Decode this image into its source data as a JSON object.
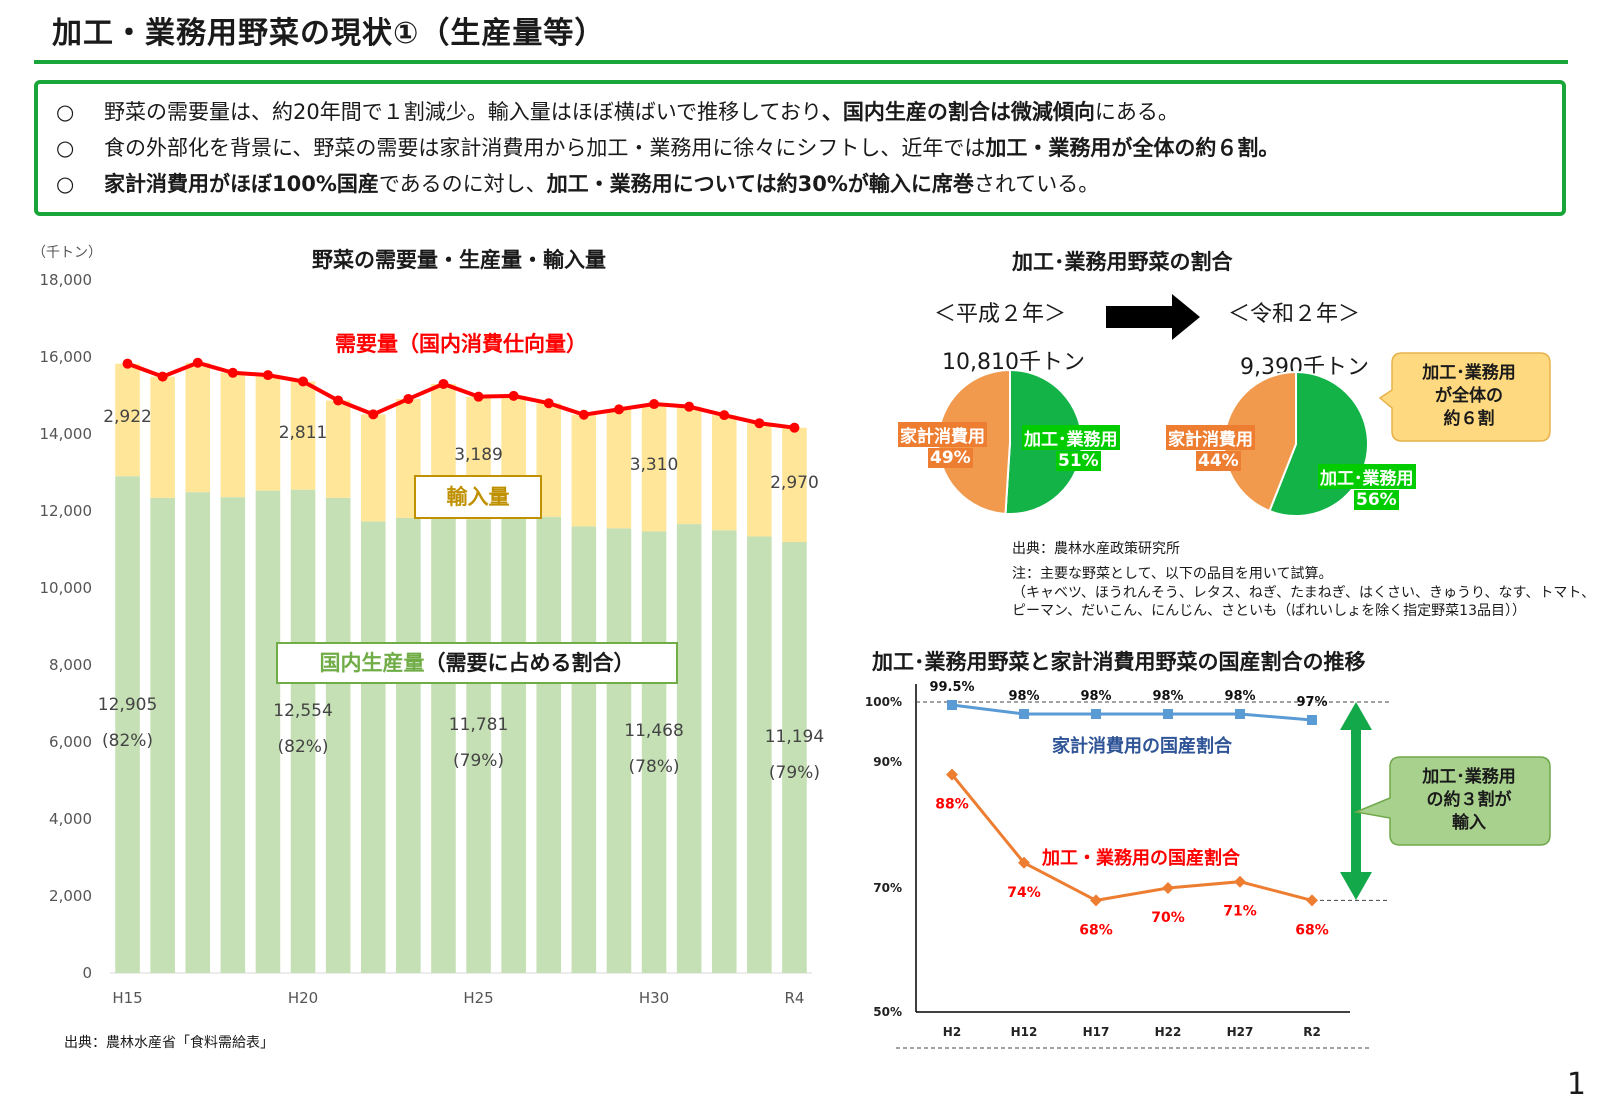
{
  "page": {
    "title": "加工・業務用野菜の現状①（生産量等）",
    "page_number": "1",
    "colors": {
      "accent_green": "#1aa53a",
      "demand_red": "#ff0000",
      "import_yellow": "#ffe699",
      "domestic_green": "#c5e0b4"
    }
  },
  "summary": {
    "bullet": "○",
    "lines": [
      {
        "a": "野菜の需要量は、約20年間で１割減少。輸入量はほぼ横ばいで推移しており",
        "b": "、国内生産の割合は微減傾向",
        "c": "にある。",
        "d": "",
        "e": ""
      },
      {
        "a": "食の外部化を背景に、野菜の需要は家計消費用から加工・業務用に徐々にシフトし、近年では",
        "b": "加工・業務用が全体の約６割",
        "c": "。",
        "d": "",
        "e": ""
      },
      {
        "a": "",
        "b": "家計消費用がほぼ100%国産",
        "c": "であるのに対し、",
        "d": "加工・業務用については約30%が輸入に席巻",
        "e": "されている。"
      }
    ]
  },
  "left_chart": {
    "title": "野菜の需要量・生産量・輸入量",
    "unit": "（千トン）",
    "source": "出典：農林水産省「食料需給表」",
    "demand_label": "需要量（国内消費仕向量）",
    "import_label": "輸入量",
    "domestic_label_green": "国内生産量",
    "domestic_label_black": "（需要に占める割合）",
    "y_ticks": [
      "18,000",
      "16,000",
      "14,000",
      "12,000",
      "10,000",
      "8,000",
      "6,000",
      "4,000",
      "2,000",
      "0"
    ],
    "x_labels": [
      "H15",
      "H20",
      "H25",
      "H30",
      "R4"
    ],
    "domestic_annotations": [
      {
        "value": "12,905",
        "pct": "(82%)"
      },
      {
        "value": "12,554",
        "pct": "(82%)"
      },
      {
        "value": "11,781",
        "pct": "(79%)"
      },
      {
        "value": "11,468",
        "pct": "(78%)"
      },
      {
        "value": "11,194",
        "pct": "(79%)"
      }
    ],
    "import_annotations": [
      "2,922",
      "2,811",
      "3,189",
      "3,310",
      "2,970"
    ]
  },
  "pie_section": {
    "title": "加工･業務用野菜の割合",
    "left_era": "＜平成２年＞",
    "right_era": "＜令和２年＞",
    "left_total": "10,810千トン",
    "right_total": "9,390千トン",
    "household_label": "家計消費用",
    "processing_label": "加工･業務用",
    "left_household_pct": "49%",
    "left_processing_pct": "51%",
    "right_household_pct": "44%",
    "right_processing_pct": "56%",
    "callout": [
      "加工･業務用",
      "が全体の",
      "約６割"
    ],
    "source": "出典：農林水産政策研究所",
    "note_1": "注：主要な野菜として、以下の品目を用いて試算。",
    "note_2": "（キャベツ、ほうれんそう、レタス、ねぎ、たまねぎ、はくさい、きゅうり、なす、トマト、",
    "note_3": "ピーマン、だいこん、にんじん、さといも（ばれいしょを除く指定野菜13品目））"
  },
  "line_section": {
    "title": "加工･業務用野菜と家計消費用野菜の国産割合の推移",
    "y_ticks": [
      "100%",
      "90%",
      "70%",
      "50%"
    ],
    "household_series_label": "家計消費用の国産割合",
    "processing_series_label": "加工・業務用の国産割合",
    "callout": [
      "加工･業務用",
      "の約３割が",
      "輸入"
    ]
  },
  "chart_data": [
    {
      "type": "bar",
      "title": "野菜の需要量・生産量・輸入量",
      "ylabel": "（千トン）",
      "ylim": [
        0,
        18000
      ],
      "categories": [
        "H15",
        "H16",
        "H17",
        "H18",
        "H19",
        "H20",
        "H21",
        "H22",
        "H23",
        "H24",
        "H25",
        "H26",
        "H27",
        "H28",
        "H29",
        "H30",
        "R1",
        "R2",
        "R3",
        "R4"
      ],
      "stacked": true,
      "series": [
        {
          "name": "国内生産量",
          "values": [
            12905,
            12340,
            12490,
            12360,
            12530,
            12554,
            12340,
            11730,
            11820,
            12010,
            11781,
            11890,
            11850,
            11600,
            11550,
            11468,
            11660,
            11500,
            11340,
            11194
          ]
        },
        {
          "name": "輸入量",
          "values": [
            2922,
            3150,
            3360,
            3230,
            3000,
            2811,
            2530,
            2780,
            3090,
            3290,
            3189,
            3100,
            2950,
            2900,
            3090,
            3310,
            3050,
            2990,
            2940,
            2970
          ]
        }
      ],
      "line": {
        "name": "需要量（国内消費仕向量）",
        "values": [
          15827,
          15490,
          15850,
          15590,
          15530,
          15365,
          14870,
          14510,
          14910,
          15300,
          14970,
          14990,
          14800,
          14500,
          14640,
          14778,
          14710,
          14490,
          14280,
          14164
        ]
      },
      "grid": false
    },
    {
      "type": "pie",
      "title": "＜平成２年＞",
      "labels": [
        "家計消費用",
        "加工･業務用"
      ],
      "values": [
        49,
        51
      ]
    },
    {
      "type": "pie",
      "title": "＜令和２年＞",
      "labels": [
        "家計消費用",
        "加工･業務用"
      ],
      "values": [
        44,
        56
      ]
    },
    {
      "type": "line",
      "title": "加工･業務用野菜と家計消費用野菜の国産割合の推移",
      "x": [
        "H2",
        "H12",
        "H17",
        "H22",
        "H27",
        "R2"
      ],
      "series": [
        {
          "name": "家計消費用の国産割合",
          "values": [
            99.5,
            98,
            98,
            98,
            98,
            97
          ],
          "labels": [
            "99.5%",
            "98%",
            "98%",
            "98%",
            "98%",
            "97%"
          ],
          "color": "#5b9bd5"
        },
        {
          "name": "加工・業務用の国産割合",
          "values": [
            88,
            74,
            68,
            70,
            71,
            68
          ],
          "labels": [
            "88%",
            "74%",
            "68%",
            "70%",
            "71%",
            "68%"
          ],
          "color": "#ed7d31"
        }
      ]
    }
  ]
}
